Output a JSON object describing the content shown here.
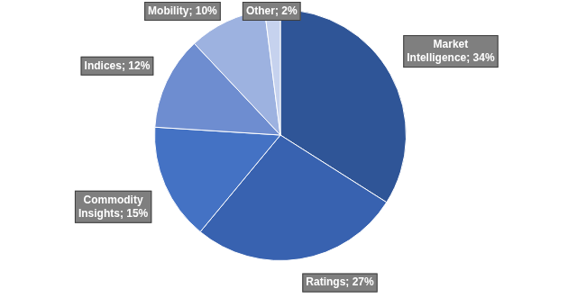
{
  "chart_data": {
    "type": "pie",
    "categories": [
      "Market Intelligence",
      "Ratings",
      "Commodity Insights",
      "Indices",
      "Mobility",
      "Other"
    ],
    "values": [
      34,
      27,
      15,
      12,
      10,
      2
    ],
    "value_labels": [
      "Market Intelligence; 34%",
      "Ratings; 27%",
      "Commodity Insights; 15%",
      "Indices; 12%",
      "Mobility; 10%",
      "Other; 2%"
    ],
    "colors": [
      "#2f5597",
      "#3862b0",
      "#4472c4",
      "#6e8dd0",
      "#9db2e0",
      "#c6d2ee"
    ],
    "data_labels": true
  }
}
